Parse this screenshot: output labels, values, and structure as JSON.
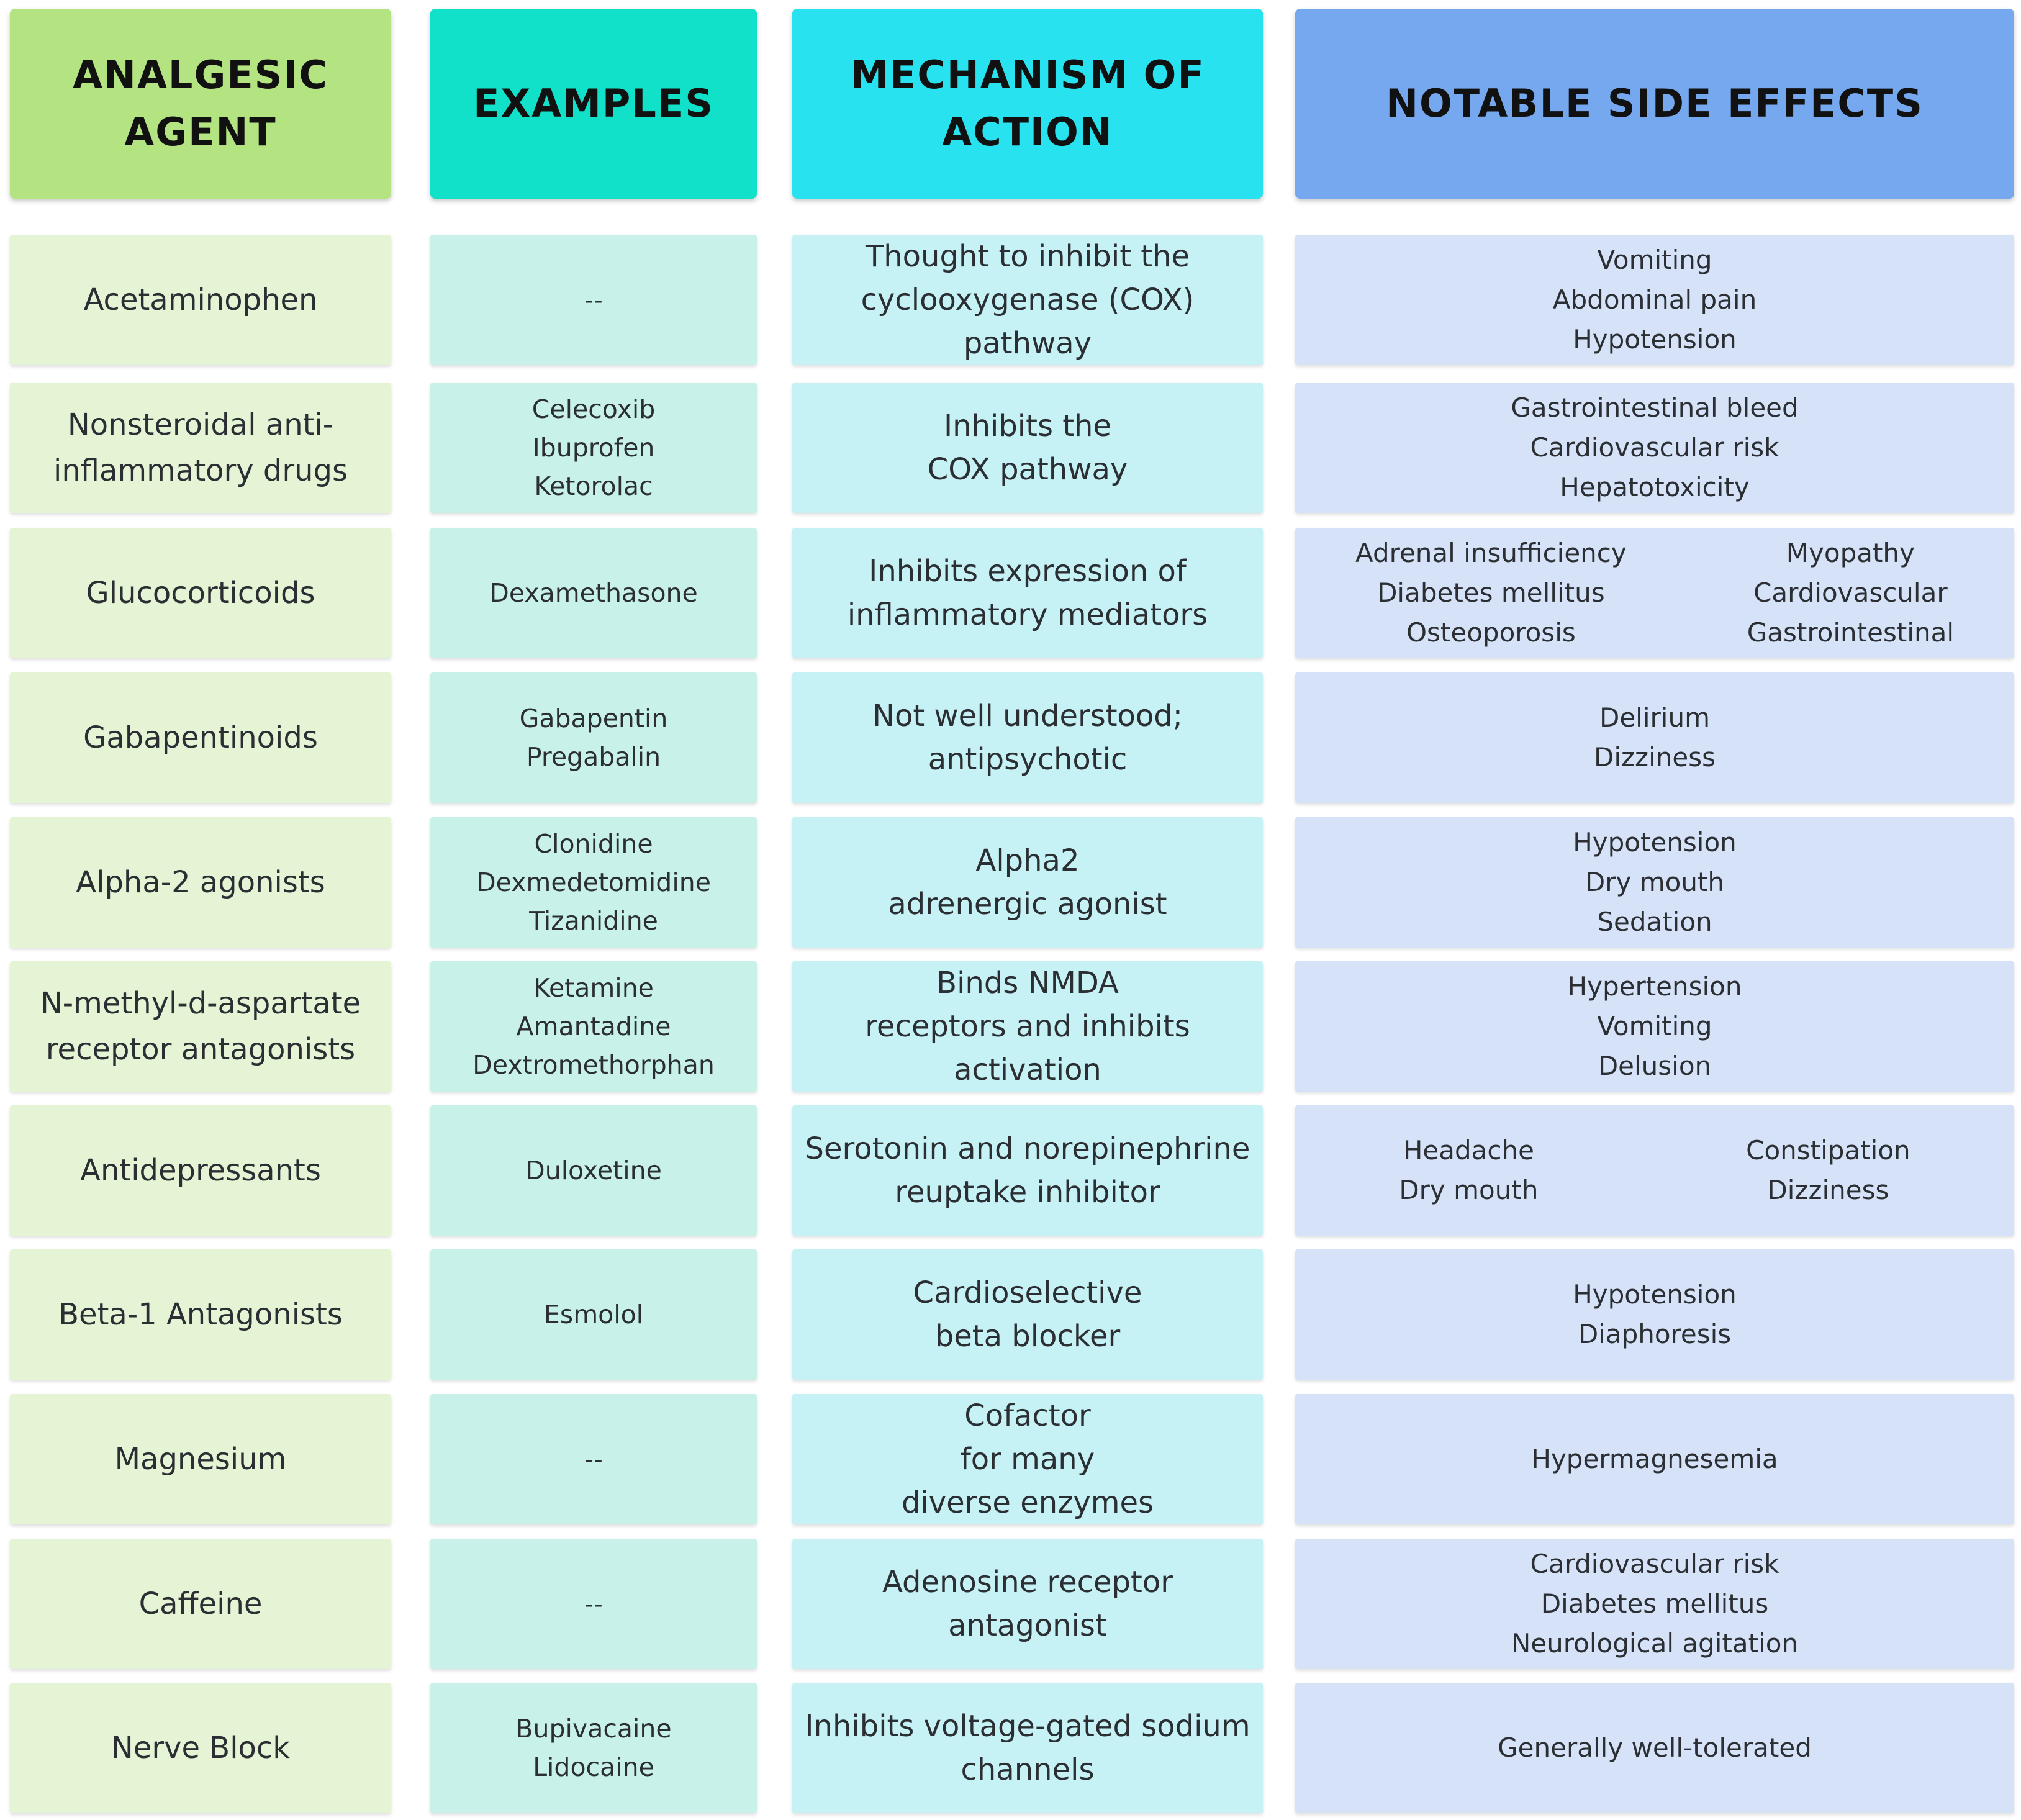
{
  "headers": {
    "agent": [
      "ANALGESIC",
      "AGENT"
    ],
    "examples": [
      "EXAMPLES"
    ],
    "mechanism": [
      "MECHANISM OF",
      "ACTION"
    ],
    "side_effects": [
      "NOTABLE SIDE EFFECTS"
    ]
  },
  "rows": [
    {
      "agent": [
        "Acetaminophen"
      ],
      "examples": [
        "--"
      ],
      "mechanism": [
        "Thought to inhibit the",
        "cyclooxygenase (COX)",
        "pathway"
      ],
      "side_effects": [
        [
          "Vomiting",
          "Abdominal pain",
          "Hypotension"
        ]
      ]
    },
    {
      "agent": [
        "Nonsteroidal anti-",
        "inflammatory drugs"
      ],
      "examples": [
        "Celecoxib",
        "Ibuprofen",
        "Ketorolac"
      ],
      "mechanism": [
        "Inhibits the",
        "COX pathway"
      ],
      "side_effects": [
        [
          "Gastrointestinal bleed",
          "Cardiovascular risk",
          "Hepatotoxicity"
        ]
      ]
    },
    {
      "agent": [
        "Glucocorticoids"
      ],
      "examples": [
        "Dexamethasone"
      ],
      "mechanism": [
        "Inhibits expression of",
        "inflammatory mediators"
      ],
      "side_effects": [
        [
          "Adrenal insufficiency",
          "Diabetes mellitus",
          "Osteoporosis"
        ],
        [
          "Myopathy",
          "Cardiovascular",
          "Gastrointestinal"
        ]
      ]
    },
    {
      "agent": [
        "Gabapentinoids"
      ],
      "examples": [
        "Gabapentin",
        "Pregabalin"
      ],
      "mechanism": [
        "Not well understood;",
        "antipsychotic"
      ],
      "side_effects": [
        [
          "Delirium",
          "Dizziness"
        ]
      ]
    },
    {
      "agent": [
        "Alpha-2 agonists"
      ],
      "examples": [
        "Clonidine",
        "Dexmedetomidine",
        "Tizanidine"
      ],
      "mechanism": [
        "Alpha2",
        "adrenergic agonist"
      ],
      "side_effects": [
        [
          "Hypotension",
          "Dry mouth",
          "Sedation"
        ]
      ]
    },
    {
      "agent": [
        "N-methyl-d-aspartate",
        "receptor antagonists"
      ],
      "examples": [
        "Ketamine",
        "Amantadine",
        "Dextromethorphan"
      ],
      "mechanism": [
        "Binds NMDA",
        "receptors and inhibits",
        "activation"
      ],
      "side_effects": [
        [
          "Hypertension",
          "Vomiting",
          "Delusion"
        ]
      ]
    },
    {
      "agent": [
        "Antidepressants"
      ],
      "examples": [
        "Duloxetine"
      ],
      "mechanism": [
        "Serotonin and norepinephrine",
        "reuptake inhibitor"
      ],
      "side_effects": [
        [
          "Headache",
          "Dry mouth"
        ],
        [
          "Constipation",
          "Dizziness"
        ]
      ]
    },
    {
      "agent": [
        "Beta-1 Antagonists"
      ],
      "examples": [
        "Esmolol"
      ],
      "mechanism": [
        "Cardioselective",
        "beta blocker"
      ],
      "side_effects": [
        [
          "Hypotension",
          "Diaphoresis"
        ]
      ]
    },
    {
      "agent": [
        "Magnesium"
      ],
      "examples": [
        "--"
      ],
      "mechanism": [
        "Cofactor",
        "for many",
        "diverse enzymes"
      ],
      "side_effects": [
        [
          "Hypermagnesemia"
        ]
      ]
    },
    {
      "agent": [
        "Caffeine"
      ],
      "examples": [
        "--"
      ],
      "mechanism": [
        "Adenosine receptor",
        "antagonist"
      ],
      "side_effects": [
        [
          "Cardiovascular risk",
          "Diabetes mellitus",
          "Neurological agitation"
        ]
      ]
    },
    {
      "agent": [
        "Nerve Block"
      ],
      "examples": [
        "Bupivacaine",
        "Lidocaine"
      ],
      "mechanism": [
        "Inhibits voltage-gated sodium",
        "channels"
      ],
      "side_effects": [
        [
          "Generally well-tolerated"
        ]
      ]
    }
  ]
}
